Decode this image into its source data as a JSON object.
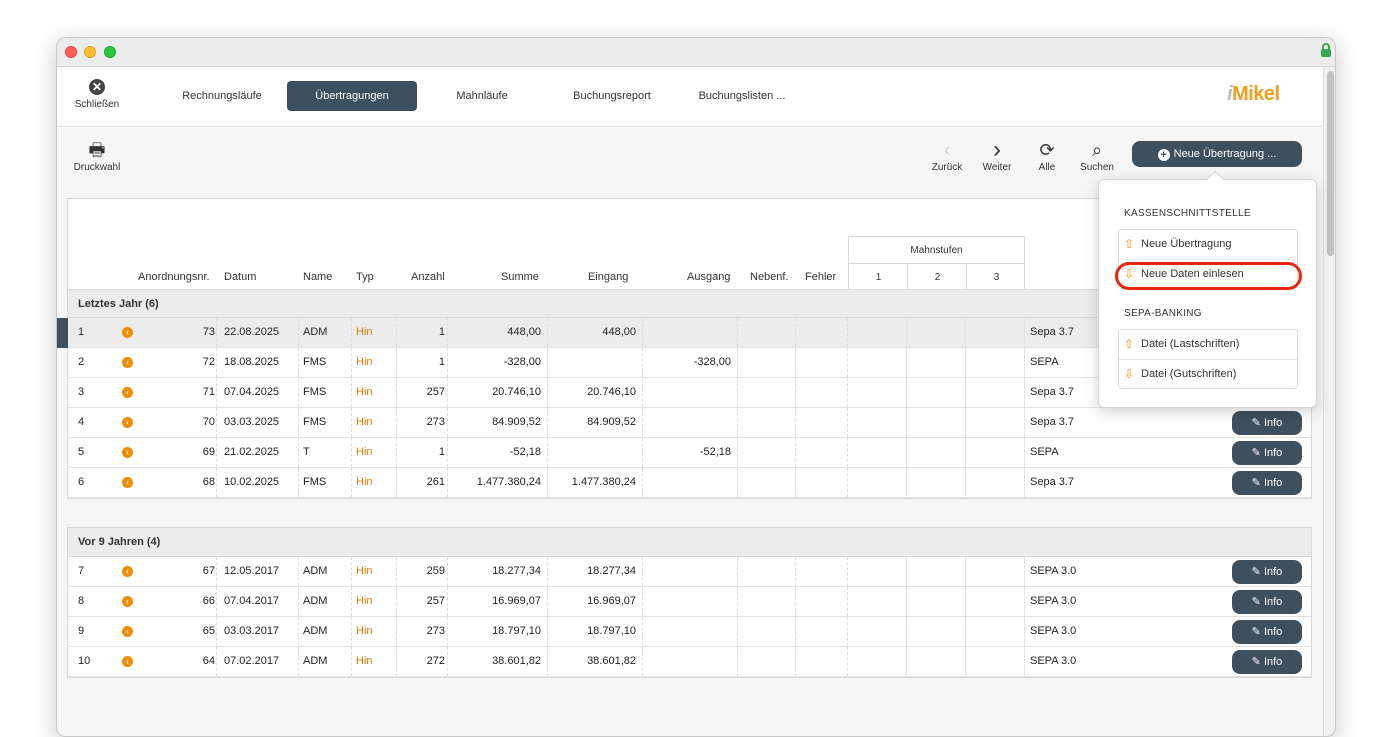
{
  "window": {
    "close_label": "Schließen",
    "tabs": [
      {
        "label": "Rechnungsläufe"
      },
      {
        "label": "Übertragungen"
      },
      {
        "label": "Mahnläufe"
      },
      {
        "label": "Buchungsreport"
      },
      {
        "label": "Buchungslisten ..."
      }
    ],
    "logo": {
      "prefix": "i",
      "text": "Mikel"
    }
  },
  "toolbar": {
    "print_label": "Druckwahl",
    "back_label": "Zurück",
    "next_label": "Weiter",
    "all_label": "Alle",
    "search_label": "Suchen",
    "new_label": "Neue Übertragung ..."
  },
  "table": {
    "headers": {
      "anordnung": "Anordnungsnr.",
      "datum": "Datum",
      "name": "Name",
      "typ": "Typ",
      "anzahl": "Anzahl",
      "summe": "Summe",
      "eingang": "Eingang",
      "ausgang": "Ausgang",
      "nebenf": "Nebenf.",
      "fehler": "Fehler",
      "mahnstufen": "Mahnstufen",
      "m1": "1",
      "m2": "2",
      "m3": "3"
    },
    "info_label": "Info",
    "groups": [
      {
        "title": "Letztes Jahr (6)",
        "rows": [
          {
            "n": "1",
            "nr": "73",
            "datum": "22.08.2025",
            "name": "ADM",
            "typ": "Hin",
            "anzahl": "1",
            "summe": "448,00",
            "eingang": "448,00",
            "ausgang": "",
            "format": "Sepa 3.7"
          },
          {
            "n": "2",
            "nr": "72",
            "datum": "18.08.2025",
            "name": "FMS",
            "typ": "Hin",
            "anzahl": "1",
            "summe": "-328,00",
            "eingang": "",
            "ausgang": "-328,00",
            "format": "SEPA"
          },
          {
            "n": "3",
            "nr": "71",
            "datum": "07.04.2025",
            "name": "FMS",
            "typ": "Hin",
            "anzahl": "257",
            "summe": "20.746,10",
            "eingang": "20.746,10",
            "ausgang": "",
            "format": "Sepa 3.7"
          },
          {
            "n": "4",
            "nr": "70",
            "datum": "03.03.2025",
            "name": "FMS",
            "typ": "Hin",
            "anzahl": "273",
            "summe": "84.909,52",
            "eingang": "84.909,52",
            "ausgang": "",
            "format": "Sepa 3.7"
          },
          {
            "n": "5",
            "nr": "69",
            "datum": "21.02.2025",
            "name": "T",
            "typ": "Hin",
            "anzahl": "1",
            "summe": "-52,18",
            "eingang": "",
            "ausgang": "-52,18",
            "format": "SEPA"
          },
          {
            "n": "6",
            "nr": "68",
            "datum": "10.02.2025",
            "name": "FMS",
            "typ": "Hin",
            "anzahl": "261",
            "summe": "1.477.380,24",
            "eingang": "1.477.380,24",
            "ausgang": "",
            "format": "Sepa 3.7"
          }
        ]
      },
      {
        "title": "Vor 9 Jahren (4)",
        "rows": [
          {
            "n": "7",
            "nr": "67",
            "datum": "12.05.2017",
            "name": "ADM",
            "typ": "Hin",
            "anzahl": "259",
            "summe": "18.277,34",
            "eingang": "18.277,34",
            "ausgang": "",
            "format": "SEPA 3.0"
          },
          {
            "n": "8",
            "nr": "66",
            "datum": "07.04.2017",
            "name": "ADM",
            "typ": "Hin",
            "anzahl": "257",
            "summe": "16.969,07",
            "eingang": "16.969,07",
            "ausgang": "",
            "format": "SEPA 3.0"
          },
          {
            "n": "9",
            "nr": "65",
            "datum": "03.03.2017",
            "name": "ADM",
            "typ": "Hin",
            "anzahl": "273",
            "summe": "18.797,10",
            "eingang": "18.797,10",
            "ausgang": "",
            "format": "SEPA 3.0"
          },
          {
            "n": "10",
            "nr": "64",
            "datum": "07.02.2017",
            "name": "ADM",
            "typ": "Hin",
            "anzahl": "272",
            "summe": "38.601,82",
            "eingang": "38.601,82",
            "ausgang": "",
            "format": "SEPA 3.0"
          }
        ]
      }
    ]
  },
  "dropdown": {
    "section1": "KASSENSCHNITTSTELLE",
    "items1": [
      {
        "label": "Neue Übertragung"
      },
      {
        "label": "Neue Daten einlesen"
      }
    ],
    "section2": "SEPA-BANKING",
    "items2": [
      {
        "label": "Datei (Lastschriften)"
      },
      {
        "label": "Datei (Gutschriften)"
      }
    ]
  },
  "colors": {
    "accent": "#3e4f5e",
    "orange": "#f08c00",
    "highlight": "#e8260e"
  }
}
